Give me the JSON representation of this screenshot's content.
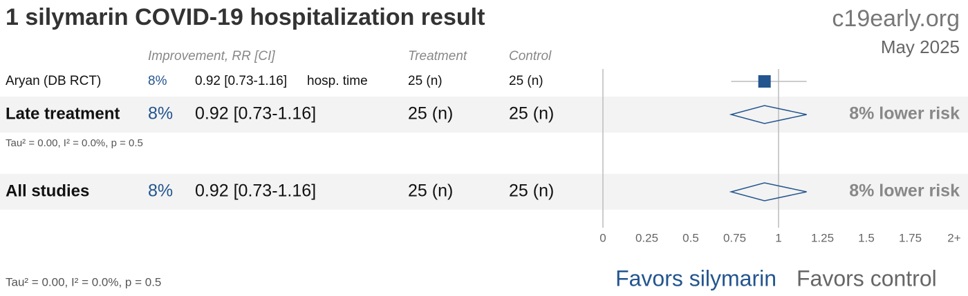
{
  "chart_data": {
    "type": "forest",
    "title": "1 silymarin COVID-19 hospitalization result",
    "brand": "c19early.org",
    "date": "May 2025",
    "columns": [
      "Improvement, RR [CI]",
      "Treatment",
      "Control"
    ],
    "rows": [
      {
        "name": "Aryan (DB RCT)",
        "improvement": "8%",
        "rr_label": "0.92 [0.73-1.16]",
        "outcome": "hosp. time",
        "treatment": "25 (n)",
        "control": "25 (n)",
        "rr": 0.92,
        "ci_low": 0.73,
        "ci_high": 1.16
      },
      {
        "name": "Late treatment",
        "improvement": "8%",
        "rr_label": "0.92 [0.73-1.16]",
        "treatment": "25 (n)",
        "control": "25 (n)",
        "rr": 0.92,
        "ci_low": 0.73,
        "ci_high": 1.16,
        "summary": "8% lower risk",
        "stats": "Tau² = 0.00, I² = 0.0%, p = 0.5"
      },
      {
        "name": "All studies",
        "improvement": "8%",
        "rr_label": "0.92 [0.73-1.16]",
        "treatment": "25 (n)",
        "control": "25 (n)",
        "rr": 0.92,
        "ci_low": 0.73,
        "ci_high": 1.16,
        "summary": "8% lower risk"
      }
    ],
    "footnote": "Tau² = 0.00, I² = 0.0%, p = 0.5",
    "xlim": [
      0,
      2
    ],
    "xticks": [
      0,
      0.25,
      0.5,
      0.75,
      1,
      1.25,
      1.5,
      1.75,
      {
        "value": 2,
        "label": "2+"
      }
    ],
    "reference_line": 1,
    "favors": [
      "Favors silymarin",
      "Favors control"
    ],
    "color": "#23558f"
  }
}
